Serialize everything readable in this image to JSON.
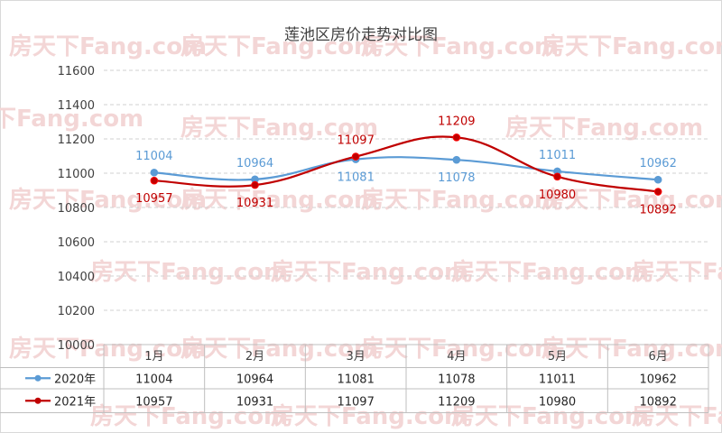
{
  "chart_data": {
    "type": "line",
    "title": "莲池区房价走势对比图",
    "categories": [
      "1月",
      "2月",
      "3月",
      "4月",
      "5月",
      "6月"
    ],
    "series": [
      {
        "name": "2020年",
        "values": [
          11004,
          10964,
          11081,
          11078,
          11011,
          10962
        ],
        "color": "#5b9bd5"
      },
      {
        "name": "2021年",
        "values": [
          10957,
          10931,
          11097,
          11209,
          10980,
          10892
        ],
        "color": "#c00000"
      }
    ],
    "ylim": [
      10000,
      11600
    ],
    "yticks": [
      10000,
      10200,
      10400,
      10600,
      10800,
      11000,
      11200,
      11400,
      11600
    ],
    "grid": true,
    "data_table": true,
    "watermark": "房天下Fang.com"
  }
}
